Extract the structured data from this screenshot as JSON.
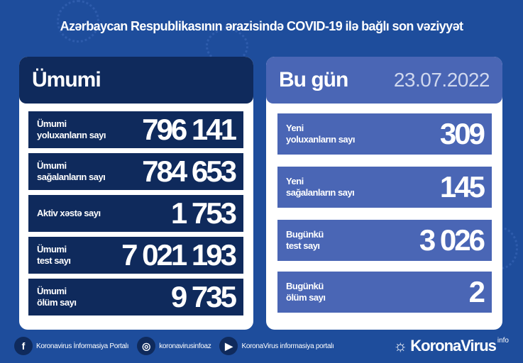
{
  "title": "Azərbaycan Respublikasının ərazisində COVID-19 ilə bağlı son vəziyyət",
  "colors": {
    "background": "#1e4d9c",
    "navy": "#0f2a5c",
    "today_blue": "#4a66b5"
  },
  "total": {
    "heading": "Ümumi",
    "rows": [
      {
        "label1": "Ümumi",
        "label2": "yoluxanların sayı",
        "value": "796 141"
      },
      {
        "label1": "Ümumi",
        "label2": "sağalanların sayı",
        "value": "784 653"
      },
      {
        "label1": "Aktiv xəstə sayı",
        "label2": "",
        "value": "1 753"
      },
      {
        "label1": "Ümumi",
        "label2": "test sayı",
        "value": "7 021 193"
      },
      {
        "label1": "Ümumi",
        "label2": "ölüm sayı",
        "value": "9 735"
      }
    ]
  },
  "today": {
    "heading": "Bu gün",
    "date": "23.07.2022",
    "rows": [
      {
        "label1": "Yeni",
        "label2": "yoluxanların sayı",
        "value": "309"
      },
      {
        "label1": "Yeni",
        "label2": "sağalanların sayı",
        "value": "145"
      },
      {
        "label1": "Bugünkü",
        "label2": "test sayı",
        "value": "3 026"
      },
      {
        "label1": "Bugünkü",
        "label2": "ölüm sayı",
        "value": "2"
      }
    ]
  },
  "footer": {
    "facebook": "Koronavirus İnformasiya Portalı",
    "instagram": "koronavirusinfoaz",
    "youtube": "KoronaVirus informasiya portalı",
    "brand": "KoronaVirus",
    "brand_sup": "info"
  }
}
